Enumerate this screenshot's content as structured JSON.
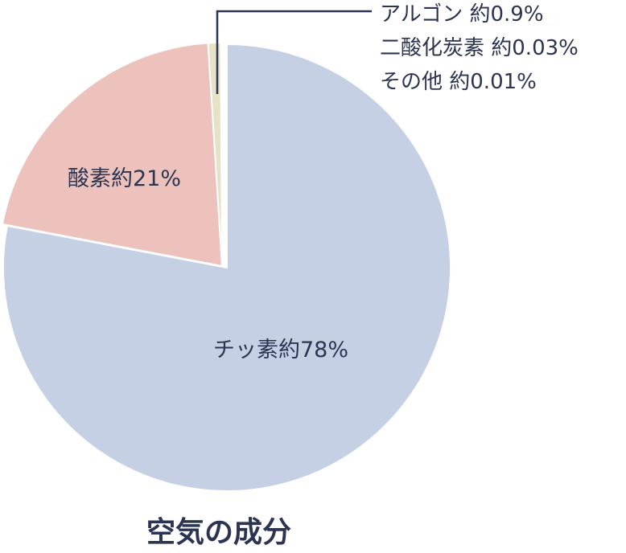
{
  "chart_data": {
    "type": "pie",
    "title": "空気の成分",
    "slices": [
      {
        "label": "チッ素約78%",
        "value": 78,
        "color": "#c5d0e4"
      },
      {
        "label": "酸素約21%",
        "value": 21,
        "color": "#edc2bd"
      },
      {
        "label": "アルゴン 約0.9%",
        "value": 0.9,
        "color": "#e7e2c6"
      }
    ],
    "callout_lines": [
      "アルゴン 約0.9%",
      "二酸化炭素 約0.03%",
      "その他 約0.01%"
    ]
  }
}
